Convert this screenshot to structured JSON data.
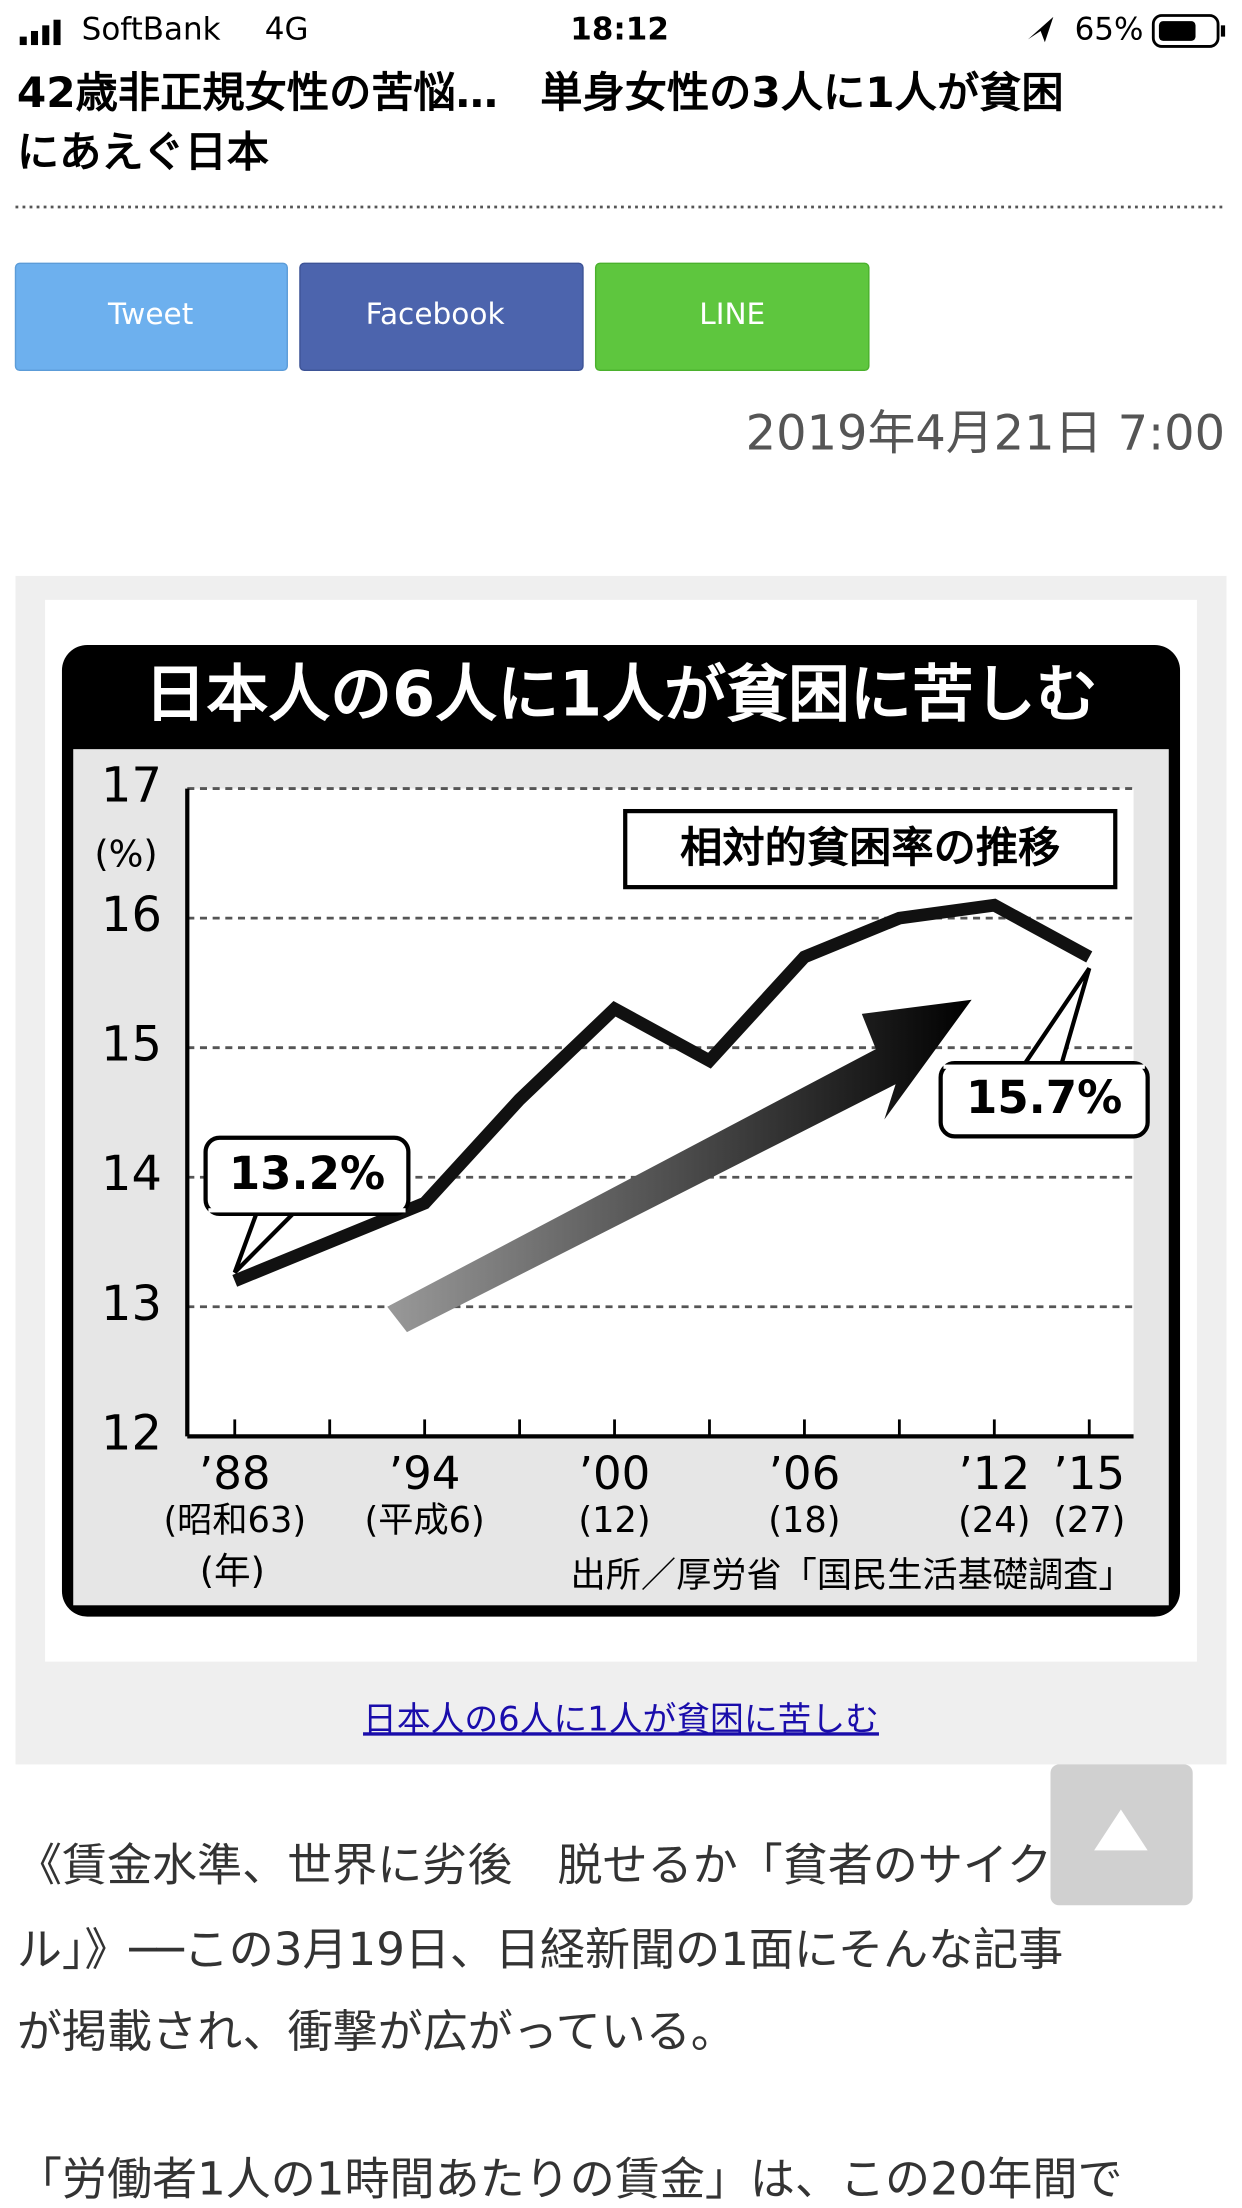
{
  "status_bar": {
    "carrier": "SoftBank",
    "network": "4G",
    "time": "18:12",
    "battery": "65%"
  },
  "header": {
    "title_lines": [
      "42歳非正規女性の苦悩…　単身女性の3人に1人が貧困",
      "にあえぐ日本"
    ]
  },
  "buttons": [
    "Tweet",
    "Facebook",
    "LINE"
  ],
  "date": "2019年4月21日 7:00",
  "chart_data": {
    "type": "line",
    "title": "日本人の6人に1人が貧困に苦しむ",
    "subtitle": "相対的貧困率の推移",
    "x": [
      1988,
      1991,
      1994,
      1997,
      2000,
      2003,
      2006,
      2009,
      2012,
      2015
    ],
    "values": [
      13.2,
      13.5,
      13.8,
      14.6,
      15.3,
      14.9,
      15.7,
      16.0,
      16.1,
      15.7
    ],
    "value_labels": [
      "13.2%",
      null,
      null,
      null,
      null,
      null,
      null,
      null,
      null,
      "15.7%"
    ],
    "color": "#111111",
    "xlim": [
      1986.5,
      2016.4
    ],
    "xticks": [
      {
        "value": 1988,
        "label": "’88",
        "sublabel": "(昭和63)"
      },
      {
        "value": 1991,
        "label": null
      },
      {
        "value": 1994,
        "label": "’94",
        "sublabel": "(平成6)"
      },
      {
        "value": 1997,
        "label": null
      },
      {
        "value": 2000,
        "label": "’00",
        "sublabel": "(12)"
      },
      {
        "value": 2003,
        "label": null
      },
      {
        "value": 2006,
        "label": "’06",
        "sublabel": "(18)"
      },
      {
        "value": 2009,
        "label": null
      },
      {
        "value": 2012,
        "label": "’12",
        "sublabel": "(24)"
      },
      {
        "value": 2015,
        "label": "’15",
        "sublabel": "(27)"
      }
    ],
    "x_unit": "(年)",
    "y_unit": "(%)",
    "ylim": [
      12,
      17
    ],
    "yticks": [
      12,
      13,
      14,
      15,
      16,
      17
    ],
    "grid": true,
    "source": "出所／厚労省「国民生活基礎調査」"
  },
  "caption": "日本人の6人に1人が貧困に苦しむ",
  "body": {
    "paragraphs": [
      {
        "lines": [
          "《賃金水準、世界に劣後　脱せるか「貧者のサイク",
          "ル」》──この3月19日、日経新聞の1面にそんな記事",
          "が掲載され、衝撃が広がっている。"
        ]
      },
      {
        "lines": [
          "「労働者1人の1時間あたりの賃金」は、この20年間で"
        ]
      }
    ]
  }
}
